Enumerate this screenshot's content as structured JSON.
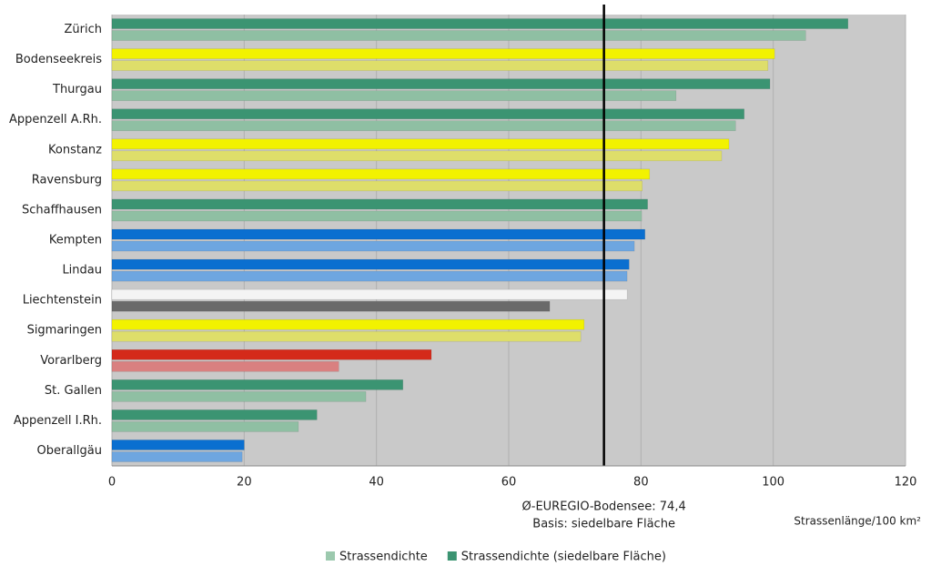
{
  "chart_data": {
    "type": "hbar",
    "categories": [
      "Zürich",
      "Bodenseekreis",
      "Thurgau",
      "Appenzell A.Rh.",
      "Konstanz",
      "Ravensburg",
      "Schaffhausen",
      "Kempten",
      "Lindau",
      "Liechtenstein",
      "Sigmaringen",
      "Vorarlberg",
      "St. Gallen",
      "Appenzell I.Rh.",
      "Oberallgäu"
    ],
    "series": [
      {
        "name": "Strassendichte",
        "color": "#9cc9ae",
        "values": [
          104.9,
          99.2,
          85.3,
          94.3,
          92.2,
          80.2,
          80.1,
          79.0,
          77.9,
          66.2,
          70.9,
          34.3,
          38.4,
          28.2,
          19.7
        ],
        "colors": [
          "#8fbfa3",
          "#dede6a",
          "#8fbfa3",
          "#8fbfa3",
          "#dede6a",
          "#dede6a",
          "#8fbfa3",
          "#6ea6e0",
          "#6ea6e0",
          "#6a6a6a",
          "#dede6a",
          "#d98080",
          "#8fbfa3",
          "#8fbfa3",
          "#6ea6e0"
        ]
      },
      {
        "name": "Strassendichte (siedelbare Fläche)",
        "color": "#3b9472",
        "values": [
          111.3,
          100.2,
          99.5,
          95.6,
          93.3,
          81.3,
          81.0,
          80.6,
          78.2,
          77.9,
          71.4,
          48.3,
          44.0,
          31.0,
          20.0
        ],
        "colors": [
          "#3b9472",
          "#f2f200",
          "#3b9472",
          "#3b9472",
          "#f2f200",
          "#f2f200",
          "#3b9472",
          "#0a6fd0",
          "#0a6fd0",
          "#f4f4f4",
          "#f2f200",
          "#d42a1a",
          "#3b9472",
          "#3b9472",
          "#0a6fd0"
        ]
      }
    ],
    "xlim": [
      0,
      120
    ],
    "xticks": [
      0,
      20,
      40,
      60,
      80,
      100,
      120
    ],
    "grid": true,
    "xlabel": "Strassenlänge/100 km²",
    "reference_line": {
      "value": 74.4
    },
    "annotations": [
      "Ø-EUREGIO-Bodensee: 74,4",
      "Basis: siedelbare Fläche"
    ],
    "legend": "bottom"
  }
}
